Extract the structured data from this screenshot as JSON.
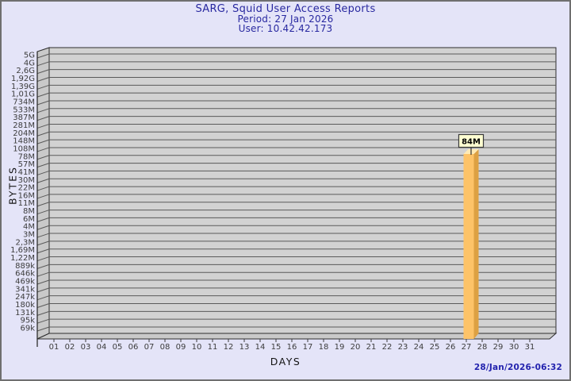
{
  "header": {
    "title": "SARG, Squid User Access Reports",
    "period": "Period: 27 Jan 2026",
    "user": "User: 10.42.42.173"
  },
  "axes": {
    "y_label": "BYTES",
    "x_label": "DAYS"
  },
  "footer": {
    "generated": "28/Jan/2026-06:32"
  },
  "chart_data": {
    "type": "bar",
    "title": "SARG, Squid User Access Reports",
    "subtitle": [
      "Period: 27 Jan 2026",
      "User: 10.42.42.173"
    ],
    "xlabel": "DAYS",
    "ylabel": "BYTES",
    "y_scale": "log",
    "grid": true,
    "legend": null,
    "x_categories": [
      "01",
      "02",
      "03",
      "04",
      "05",
      "06",
      "07",
      "08",
      "09",
      "10",
      "11",
      "12",
      "13",
      "14",
      "15",
      "16",
      "17",
      "18",
      "19",
      "20",
      "21",
      "22",
      "23",
      "24",
      "25",
      "26",
      "27",
      "28",
      "29",
      "30",
      "31"
    ],
    "y_tick_labels": [
      "5G",
      "4G",
      "2,6G",
      "1,92G",
      "1,39G",
      "1,01G",
      "734M",
      "533M",
      "387M",
      "281M",
      "204M",
      "148M",
      "108M",
      "78M",
      "57M",
      "41M",
      "30M",
      "22M",
      "16M",
      "11M",
      "8M",
      "6M",
      "4M",
      "3M",
      "2,3M",
      "1,69M",
      "1,22M",
      "889k",
      "646k",
      "469k",
      "341k",
      "247k",
      "180k",
      "131k",
      "95k",
      "69k"
    ],
    "bars": [
      {
        "x": "27",
        "value_label": "84M",
        "approx_bytes": 84000000
      }
    ],
    "style": {
      "bar_front": "#fdc368",
      "bar_side": "#dda143",
      "bar_top": "#ffeab4",
      "value_box_bg": "#ffffd2",
      "value_box_border": "#3a3a3a",
      "wall": "#d2d2d2",
      "side_wall": "#c9c9c9",
      "grid_line": "#5a5a5a",
      "frame": "#2e2e2e",
      "tick_text": "#3c3c3c"
    }
  }
}
